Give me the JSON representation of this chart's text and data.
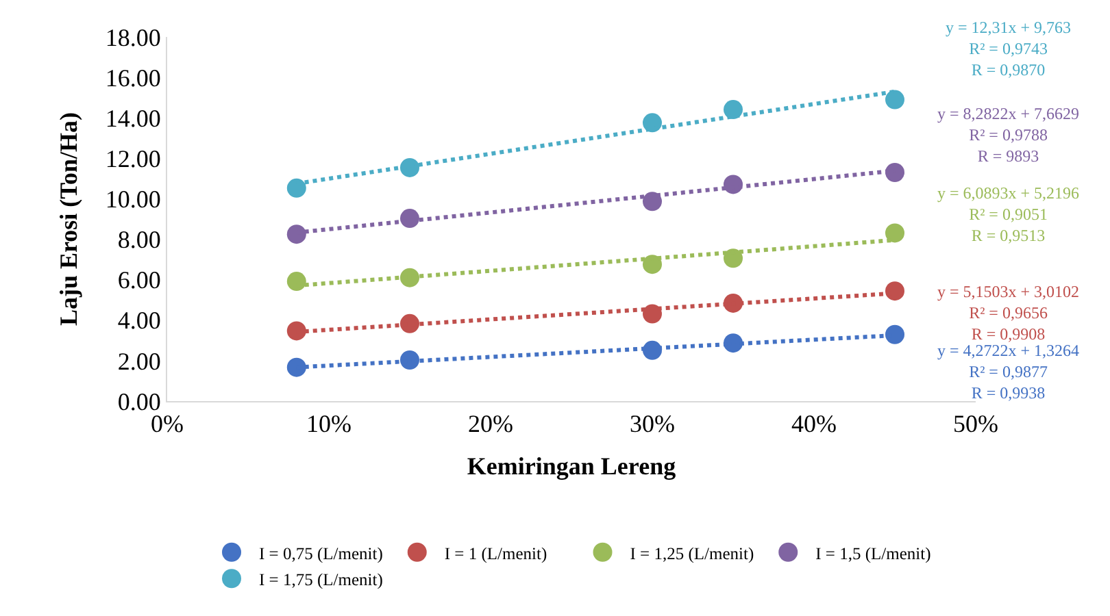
{
  "chart_data": {
    "type": "scatter",
    "xlabel": "Kemiringan Lereng",
    "ylabel": "Laju Erosi (Ton/Ha)",
    "x": [
      0.08,
      0.15,
      0.3,
      0.35,
      0.45
    ],
    "series": [
      {
        "name": "I = 0,75 (L/menit)",
        "color": "#4472c4",
        "values": [
          1.67,
          2.03,
          2.51,
          2.87,
          3.29
        ]
      },
      {
        "name": "I = 1 (L/menit)",
        "color": "#c0504d",
        "values": [
          3.47,
          3.83,
          4.31,
          4.84,
          5.44
        ]
      },
      {
        "name": "I = 1,25 (L/menit)",
        "color": "#9bbb59",
        "values": [
          5.92,
          6.1,
          6.76,
          7.06,
          8.31
        ]
      },
      {
        "name": "I = 1,5 (L/menit)",
        "color": "#8064a2",
        "values": [
          8.25,
          9.03,
          9.87,
          10.71,
          11.3
        ]
      },
      {
        "name": "I = 1,75 (L/menit)",
        "color": "#4bacc6",
        "values": [
          10.53,
          11.54,
          13.76,
          14.41,
          14.9
        ]
      },
      {
        "type": "line",
        "color": "#4472c4",
        "values": [
          1.67,
          null,
          null,
          null,
          3.25
        ],
        "line_style": "dotted",
        "marker": "none"
      },
      {
        "type": "line",
        "color": "#c0504d",
        "values": [
          3.42,
          null,
          null,
          null,
          5.33
        ],
        "line_style": "dotted",
        "marker": "none"
      },
      {
        "type": "line",
        "color": "#9bbb59",
        "values": [
          5.71,
          null,
          null,
          null,
          7.96
        ],
        "line_style": "dotted",
        "marker": "none"
      },
      {
        "type": "line",
        "color": "#8064a2",
        "values": [
          8.33,
          null,
          null,
          null,
          11.39
        ],
        "line_style": "dotted",
        "marker": "none"
      },
      {
        "type": "line",
        "color": "#4bacc6",
        "values": [
          10.75,
          null,
          null,
          null,
          15.3
        ],
        "line_style": "dotted",
        "marker": "none"
      }
    ],
    "annotations": [
      "y = 4,2722x + 1,3264\nR² = 0,9877\nR = 0,9938",
      "y = 5,1503x + 3,0102\nR² = 0,9656\nR = 0,9908",
      "y = 6,0893x + 5,2196\nR² = 0,9051\nR = 0,9513",
      "y = 8,2822x + 7,6629\nR² = 0,9788\nR = 9893",
      "y = 12,31x + 9,763\nR² = 0,9743\nR = 0,9870"
    ],
    "xlim": [
      0,
      0.5
    ],
    "xticks": [
      {
        "value": 0,
        "label": "0%"
      },
      {
        "value": 0.1,
        "label": "10%"
      },
      {
        "value": 0.2,
        "label": "20%"
      },
      {
        "value": 0.3,
        "label": "30%"
      },
      {
        "value": 0.4,
        "label": "40%"
      },
      {
        "value": 0.5,
        "label": "50%"
      }
    ],
    "ylim": [
      0,
      18
    ],
    "yticks": [
      {
        "value": 0,
        "label": "0.00"
      },
      {
        "value": 2,
        "label": "2.00"
      },
      {
        "value": 4,
        "label": "4.00"
      },
      {
        "value": 6,
        "label": "6.00"
      },
      {
        "value": 8,
        "label": "8.00"
      },
      {
        "value": 10,
        "label": "10.00"
      },
      {
        "value": 12,
        "label": "12.00"
      },
      {
        "value": 14,
        "label": "14.00"
      },
      {
        "value": 16,
        "label": "16.00"
      },
      {
        "value": 18,
        "label": "18.00"
      }
    ],
    "marker": "circle",
    "legend": "bottom"
  }
}
